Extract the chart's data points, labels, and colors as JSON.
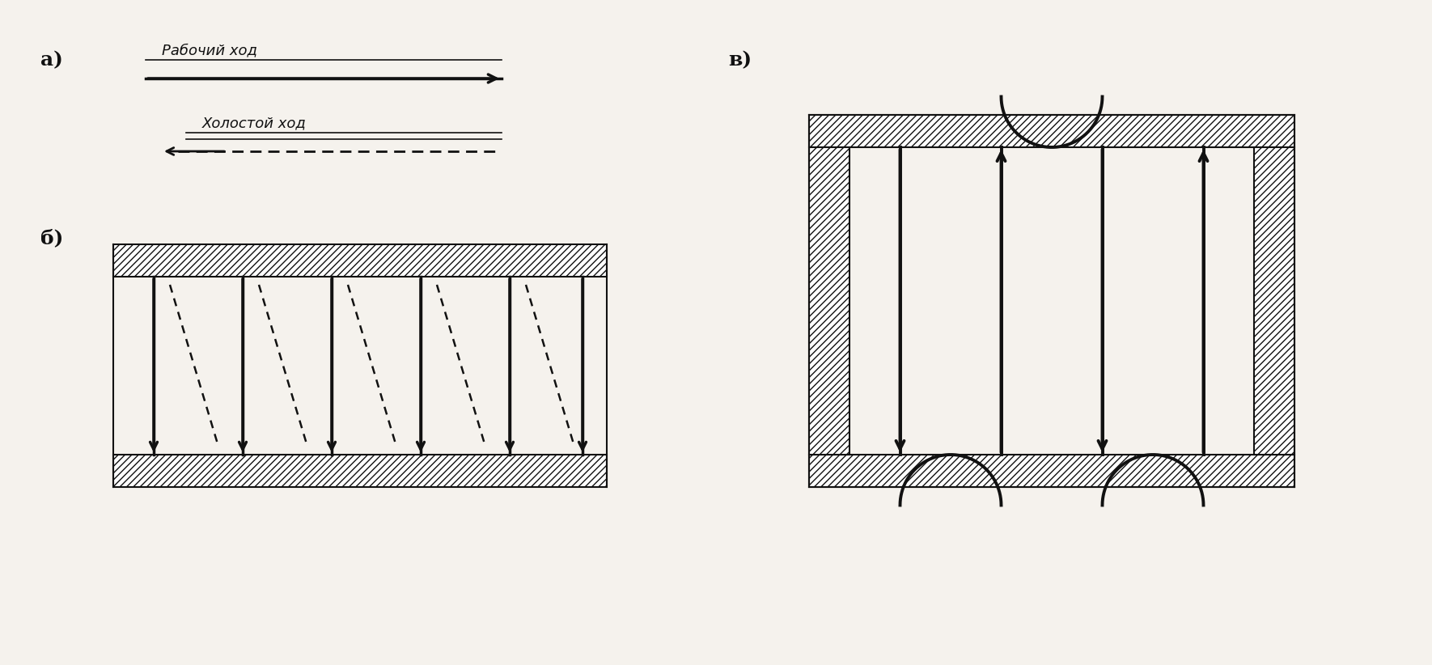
{
  "bg_color": "#f5f2ed",
  "label_a": "а)",
  "label_b": "б)",
  "label_v": "в)",
  "text_rabochiy": "Рабочий ход",
  "text_holostoy": "Холостой ход",
  "fig_width": 17.7,
  "fig_height": 8.22,
  "hatch_color": "#222222",
  "arrow_color": "#111111",
  "line_color": "#111111"
}
